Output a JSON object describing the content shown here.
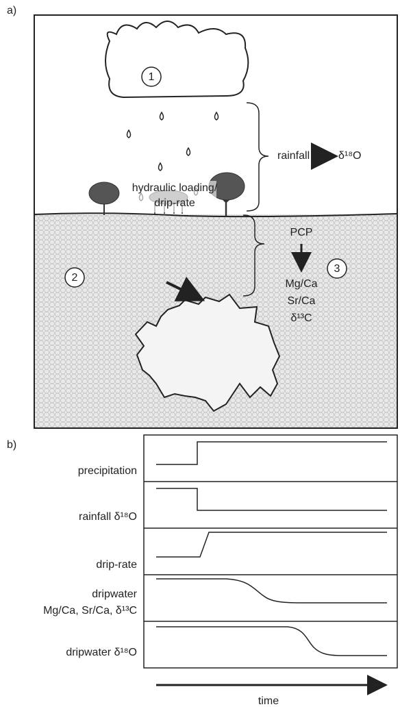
{
  "panel_a": {
    "label": "a)",
    "cloud_number": "1",
    "soil_number": "2",
    "cave_number": "3",
    "rainfall": "rainfall",
    "rainfall_proxy": "δ¹⁸O",
    "hydraulic": [
      "hydraulic loading/",
      "drip-rate"
    ],
    "pcp": "PCP",
    "pcp_proxies": [
      "Mg/Ca",
      "Sr/Ca",
      "δ¹³C"
    ]
  },
  "panel_b": {
    "label": "b)",
    "rows": [
      [
        "precipitation"
      ],
      [
        "rainfall δ¹⁸O"
      ],
      [
        "drip-rate"
      ],
      [
        "dripwater",
        "Mg/Ca, Sr/Ca, δ¹³C"
      ],
      [
        "dripwater δ¹⁸O"
      ]
    ],
    "time": "time"
  }
}
